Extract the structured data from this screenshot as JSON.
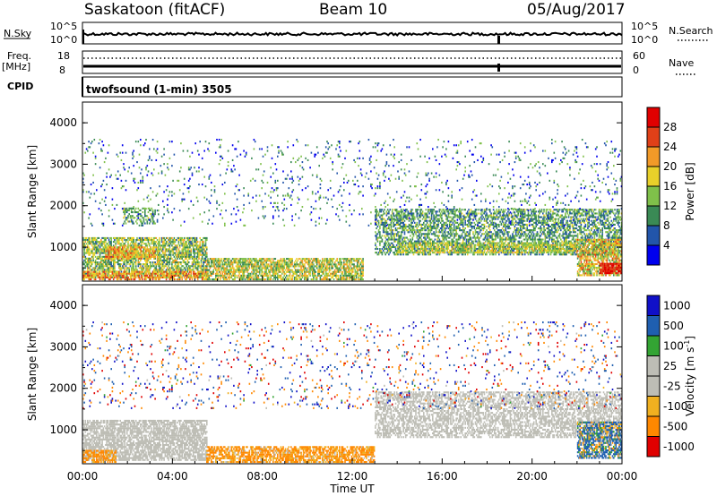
{
  "header": {
    "station": "Saskatoon (fitACF)",
    "beam": "Beam 10",
    "date": "05/Aug/2017"
  },
  "top_panels": {
    "nsky_label": "N.Sky",
    "nsky_ticks": [
      "10^5",
      "10^0"
    ],
    "nsearch_label": "N.Search",
    "nsearch_ticks": [
      "10^5",
      "10^0"
    ],
    "freq_label": "Freq.",
    "freq_unit": "[MHz]",
    "freq_ticks": [
      "18",
      "8"
    ],
    "nave_label": "Nave",
    "nave_ticks": [
      "60",
      "0"
    ],
    "cpid_label": "CPID",
    "cpid_text": "twofsound (1-min) 3505"
  },
  "colors": {
    "power": [
      "#0000ee",
      "#2255aa",
      "#3a8a55",
      "#7fc04a",
      "#e8d02a",
      "#f29a28",
      "#e04018",
      "#e00000"
    ],
    "velocity": [
      "#e00000",
      "#ff8800",
      "#f0b020",
      "#bdbdb5",
      "#bdbdb5",
      "#33a433",
      "#1f5fb0",
      "#1010c8"
    ]
  },
  "chart_data": [
    {
      "type": "heatmap",
      "name": "Power",
      "ylabel": "Slant Range [km]",
      "xlabel": "Time UT",
      "xticks": [
        "00:00",
        "04:00",
        "08:00",
        "12:00",
        "16:00",
        "20:00",
        "00:00"
      ],
      "yticks": [
        "1000",
        "2000",
        "3000",
        "4000"
      ],
      "ylim": [
        180,
        4500
      ],
      "xlim_hours": [
        0,
        24
      ],
      "colorbar_label": "Power [dB]",
      "colorbar_ticks": [
        "4",
        "8",
        "12",
        "16",
        "20",
        "24",
        "28"
      ],
      "colorbar_range": [
        0,
        32
      ],
      "regions": [
        {
          "t": [
            0.0,
            5.5
          ],
          "r": [
            250,
            1200
          ],
          "v": 14,
          "spread": 7,
          "d": 0.7
        },
        {
          "t": [
            0.0,
            5.5
          ],
          "r": [
            200,
            400
          ],
          "v": 22,
          "spread": 6,
          "d": 0.6
        },
        {
          "t": [
            1.0,
            3.2
          ],
          "r": [
            700,
            1000
          ],
          "v": 20,
          "spread": 6,
          "d": 0.75
        },
        {
          "t": [
            5.5,
            12.5
          ],
          "r": [
            200,
            700
          ],
          "v": 16,
          "spread": 7,
          "d": 0.7
        },
        {
          "t": [
            1.8,
            3.2
          ],
          "r": [
            1550,
            1950
          ],
          "v": 12,
          "spread": 5,
          "d": 0.5
        },
        {
          "t": [
            13.0,
            24.0
          ],
          "r": [
            800,
            1900
          ],
          "v": 11,
          "spread": 6,
          "d": 0.55
        },
        {
          "t": [
            14.0,
            22.0
          ],
          "r": [
            850,
            1100
          ],
          "v": 16,
          "spread": 5,
          "d": 0.6
        },
        {
          "t": [
            22.0,
            24.0
          ],
          "r": [
            300,
            1200
          ],
          "v": 18,
          "spread": 8,
          "d": 0.7
        },
        {
          "t": [
            23.0,
            24.0
          ],
          "r": [
            350,
            600
          ],
          "v": 28,
          "spread": 3,
          "d": 0.9
        },
        {
          "t": [
            0.0,
            24.0
          ],
          "r": [
            1500,
            3600
          ],
          "v": 8,
          "spread": 8,
          "d": 0.05
        }
      ]
    },
    {
      "type": "heatmap",
      "name": "Velocity",
      "ylabel": "Slant Range [km]",
      "xlabel": "Time UT",
      "xticks": [
        "00:00",
        "04:00",
        "08:00",
        "12:00",
        "16:00",
        "20:00",
        "00:00"
      ],
      "yticks": [
        "1000",
        "2000",
        "3000",
        "4000"
      ],
      "ylim": [
        180,
        4500
      ],
      "xlim_hours": [
        0,
        24
      ],
      "colorbar_label": "Velocity [m s^-1]",
      "colorbar_ticks": [
        "1000",
        "500",
        "100",
        "25",
        "-25",
        "-100",
        "-500",
        "-1000"
      ],
      "regions": [
        {
          "t": [
            0.0,
            5.5
          ],
          "r": [
            250,
            1200
          ],
          "v": 0,
          "spread": 1,
          "d": 0.7
        },
        {
          "t": [
            0.0,
            1.5
          ],
          "r": [
            200,
            500
          ],
          "v": -200,
          "spread": 200,
          "d": 0.6
        },
        {
          "t": [
            5.5,
            13.0
          ],
          "r": [
            200,
            600
          ],
          "v": -150,
          "spread": 150,
          "d": 0.7
        },
        {
          "t": [
            13.0,
            24.0
          ],
          "r": [
            800,
            1900
          ],
          "v": 0,
          "spread": 1,
          "d": 0.55
        },
        {
          "t": [
            22.0,
            24.0
          ],
          "r": [
            300,
            1200
          ],
          "v": 150,
          "spread": 300,
          "d": 0.7
        },
        {
          "t": [
            0.0,
            24.0
          ],
          "r": [
            1500,
            3600
          ],
          "v": 0,
          "spread": 800,
          "d": 0.05
        }
      ]
    }
  ]
}
